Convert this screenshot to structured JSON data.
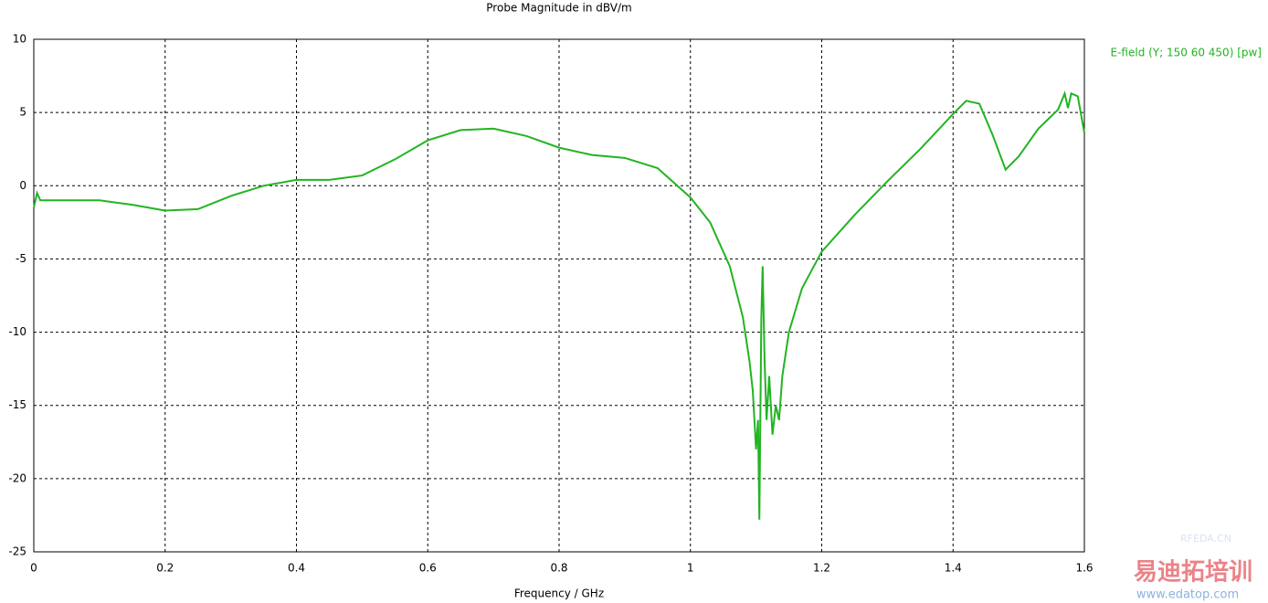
{
  "chart_data": {
    "type": "line",
    "title": "Probe Magnitude in dBV/m",
    "x_label": "Frequency / GHz",
    "xlim": [
      0,
      1.6
    ],
    "ylim": [
      -25,
      10
    ],
    "xticks": [
      0,
      0.2,
      0.4,
      0.6,
      0.8,
      1,
      1.2,
      1.4,
      1.6
    ],
    "yticks": [
      -25,
      -20,
      -15,
      -10,
      -5,
      0,
      5,
      10
    ],
    "grid": true,
    "legend": "top-right",
    "series": [
      {
        "name": "E-field (Y; 150 60 450) [pw]",
        "color": "#22b422",
        "x": [
          0,
          0.005,
          0.01,
          0.05,
          0.1,
          0.15,
          0.2,
          0.25,
          0.3,
          0.35,
          0.4,
          0.45,
          0.5,
          0.55,
          0.6,
          0.65,
          0.7,
          0.75,
          0.8,
          0.85,
          0.9,
          0.95,
          1.0,
          1.03,
          1.06,
          1.08,
          1.09,
          1.095,
          1.1,
          1.103,
          1.105,
          1.108,
          1.11,
          1.113,
          1.116,
          1.12,
          1.125,
          1.13,
          1.135,
          1.14,
          1.15,
          1.17,
          1.2,
          1.25,
          1.3,
          1.35,
          1.4,
          1.42,
          1.44,
          1.46,
          1.48,
          1.5,
          1.53,
          1.56,
          1.57,
          1.575,
          1.58,
          1.59,
          1.6
        ],
        "values": [
          -1.5,
          -0.5,
          -1.0,
          -1.0,
          -1.0,
          -1.3,
          -1.7,
          -1.6,
          -0.7,
          0,
          0.4,
          0.4,
          0.7,
          1.8,
          3.1,
          3.8,
          3.9,
          3.4,
          2.6,
          2.1,
          1.9,
          1.2,
          -0.8,
          -2.5,
          -5.5,
          -9,
          -12,
          -14,
          -18,
          -16,
          -22.8,
          -9,
          -5.5,
          -12,
          -16,
          -13,
          -17,
          -15,
          -16,
          -13,
          -10,
          -7,
          -4.5,
          -2,
          0.3,
          2.5,
          4.9,
          5.8,
          5.6,
          3.5,
          1.1,
          2.0,
          3.9,
          5.2,
          6.3,
          5.3,
          6.3,
          6.1,
          3.6
        ]
      }
    ]
  },
  "watermark": [
    "RFEDA.CN",
    "易迪拓培训",
    "www.edatop.com"
  ]
}
